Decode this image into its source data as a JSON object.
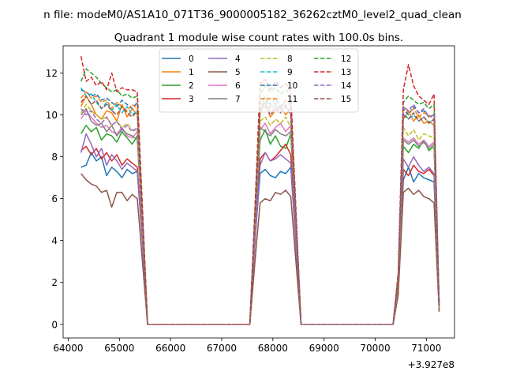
{
  "figure": {
    "suptitle": "n file: modeM0/AS1A10_071T36_9000005182_36262cztM0_level2_quad_clean",
    "title": "Quadrant 1 module wise count rates with 100.0s bins.",
    "offset_label": "+3.927e8"
  },
  "chart_data": {
    "type": "line",
    "title": "Quadrant 1 module wise count rates with 100.0s bins.",
    "xlabel": "",
    "ylabel": "",
    "x_offset": 392700000,
    "xlim": [
      63900,
      71550
    ],
    "ylim": [
      -0.65,
      13.3
    ],
    "xticks": [
      64000,
      65000,
      66000,
      67000,
      68000,
      69000,
      70000,
      71000
    ],
    "xtick_labels": [
      "64000",
      "65000",
      "66000",
      "67000",
      "68000",
      "69000",
      "70000",
      "71000"
    ],
    "yticks": [
      0,
      2,
      4,
      6,
      8,
      10,
      12
    ],
    "ytick_labels": [
      "0",
      "2",
      "4",
      "6",
      "8",
      "10",
      "12"
    ],
    "grid": false,
    "legend": {
      "placement": "upper-center",
      "columns": 4
    },
    "x": [
      64250,
      64350,
      64450,
      64550,
      64650,
      64750,
      64850,
      64950,
      65050,
      65150,
      65250,
      65350,
      65450,
      65550,
      65650,
      65750,
      65850,
      65950,
      66050,
      66150,
      66250,
      66350,
      66450,
      66550,
      66650,
      66750,
      66850,
      66950,
      67050,
      67150,
      67250,
      67350,
      67450,
      67550,
      67650,
      67750,
      67850,
      67950,
      68050,
      68150,
      68250,
      68350,
      68450,
      68550,
      68650,
      68750,
      68850,
      68950,
      69050,
      69150,
      69250,
      69350,
      69450,
      69550,
      69650,
      69750,
      69850,
      69950,
      70050,
      70150,
      70250,
      70350,
      70450,
      70550,
      70650,
      70750,
      70850,
      70950,
      71050,
      71150,
      71250
    ],
    "series": [
      {
        "name": "0",
        "color": "#1f77b4",
        "dash": "solid",
        "values": [
          7.5,
          7.6,
          8.2,
          7.8,
          8.0,
          7.1,
          7.5,
          7.3,
          7.0,
          7.4,
          7.2,
          7.3,
          4.0,
          0,
          0,
          0,
          0,
          0,
          0,
          0,
          0,
          0,
          0,
          0,
          0,
          0,
          0,
          0,
          0,
          0,
          0,
          0,
          0,
          0,
          4.0,
          7.2,
          7.4,
          7.1,
          7.0,
          7.3,
          7.2,
          7.5,
          3.8,
          0,
          0,
          0,
          0,
          0,
          0,
          0,
          0,
          0,
          0,
          0,
          0,
          0,
          0,
          0,
          0,
          0,
          0,
          0,
          1.6,
          6.9,
          7.5,
          6.8,
          7.2,
          7.0,
          6.9,
          6.8,
          0.8
        ]
      },
      {
        "name": "1",
        "color": "#ff7f0e",
        "dash": "solid",
        "values": [
          10.4,
          10.9,
          10.5,
          10.0,
          9.8,
          10.2,
          10.1,
          9.7,
          10.5,
          9.9,
          10.3,
          10.0,
          5.0,
          0,
          0,
          0,
          0,
          0,
          0,
          0,
          0,
          0,
          0,
          0,
          0,
          0,
          0,
          0,
          0,
          0,
          0,
          0,
          0,
          0,
          4.9,
          10.1,
          10.6,
          9.9,
          10.2,
          10.4,
          10.0,
          10.3,
          5.0,
          0,
          0,
          0,
          0,
          0,
          0,
          0,
          0,
          0,
          0,
          0,
          0,
          0,
          0,
          0,
          0,
          0,
          0,
          0,
          2.2,
          9.8,
          10.2,
          9.7,
          10.0,
          9.6,
          9.7,
          9.5,
          0.9
        ]
      },
      {
        "name": "2",
        "color": "#2ca02c",
        "dash": "solid",
        "values": [
          9.1,
          9.5,
          9.2,
          9.4,
          8.8,
          9.1,
          9.0,
          8.7,
          9.2,
          8.9,
          8.6,
          9.0,
          4.6,
          0,
          0,
          0,
          0,
          0,
          0,
          0,
          0,
          0,
          0,
          0,
          0,
          0,
          0,
          0,
          0,
          0,
          0,
          0,
          0,
          0,
          4.4,
          8.8,
          9.3,
          8.6,
          9.0,
          8.5,
          8.4,
          9.1,
          4.4,
          0,
          0,
          0,
          0,
          0,
          0,
          0,
          0,
          0,
          0,
          0,
          0,
          0,
          0,
          0,
          0,
          0,
          0,
          0,
          2.0,
          8.5,
          8.2,
          8.6,
          8.4,
          8.8,
          8.3,
          8.5,
          0.8
        ]
      },
      {
        "name": "3",
        "color": "#d62728",
        "dash": "solid",
        "values": [
          8.3,
          8.5,
          8.1,
          8.4,
          7.9,
          8.2,
          7.8,
          8.1,
          7.6,
          7.9,
          7.7,
          7.5,
          3.9,
          0,
          0,
          0,
          0,
          0,
          0,
          0,
          0,
          0,
          0,
          0,
          0,
          0,
          0,
          0,
          0,
          0,
          0,
          0,
          0,
          0,
          3.9,
          7.9,
          8.2,
          7.8,
          8.0,
          8.3,
          8.6,
          8.1,
          4.0,
          0,
          0,
          0,
          0,
          0,
          0,
          0,
          0,
          0,
          0,
          0,
          0,
          0,
          0,
          0,
          0,
          0,
          0,
          0,
          1.7,
          7.4,
          7.1,
          7.6,
          7.3,
          7.2,
          7.4,
          7.1,
          0.7
        ]
      },
      {
        "name": "4",
        "color": "#9467bd",
        "dash": "solid",
        "values": [
          8.2,
          9.1,
          8.6,
          8.0,
          8.4,
          7.6,
          8.1,
          7.8,
          7.4,
          7.7,
          7.5,
          7.3,
          3.8,
          0,
          0,
          0,
          0,
          0,
          0,
          0,
          0,
          0,
          0,
          0,
          0,
          0,
          0,
          0,
          0,
          0,
          0,
          0,
          0,
          0,
          3.9,
          7.6,
          8.2,
          7.8,
          7.9,
          8.1,
          7.9,
          7.7,
          3.7,
          0,
          0,
          0,
          0,
          0,
          0,
          0,
          0,
          0,
          0,
          0,
          0,
          0,
          0,
          0,
          0,
          0,
          0,
          0,
          1.8,
          7.9,
          7.5,
          8.0,
          7.6,
          7.3,
          7.5,
          7.2,
          0.7
        ]
      },
      {
        "name": "5",
        "color": "#8c564b",
        "dash": "solid",
        "values": [
          7.2,
          6.9,
          6.7,
          6.6,
          6.3,
          6.4,
          5.6,
          6.3,
          6.3,
          5.9,
          6.2,
          6.0,
          3.0,
          0,
          0,
          0,
          0,
          0,
          0,
          0,
          0,
          0,
          0,
          0,
          0,
          0,
          0,
          0,
          0,
          0,
          0,
          0,
          0,
          0,
          3.0,
          5.8,
          6.0,
          5.9,
          6.3,
          6.2,
          6.4,
          6.1,
          3.0,
          0,
          0,
          0,
          0,
          0,
          0,
          0,
          0,
          0,
          0,
          0,
          0,
          0,
          0,
          0,
          0,
          0,
          0,
          0,
          1.4,
          6.3,
          6.5,
          6.2,
          6.4,
          6.1,
          6.0,
          5.8,
          0.6
        ]
      },
      {
        "name": "6",
        "color": "#e377c2",
        "dash": "solid",
        "values": [
          9.8,
          10.2,
          9.9,
          9.6,
          9.4,
          9.5,
          9.2,
          9.1,
          9.4,
          9.0,
          8.9,
          9.2,
          4.7,
          0,
          0,
          0,
          0,
          0,
          0,
          0,
          0,
          0,
          0,
          0,
          0,
          0,
          0,
          0,
          0,
          0,
          0,
          0,
          0,
          0,
          4.6,
          9.3,
          9.6,
          9.1,
          9.4,
          9.6,
          9.2,
          9.5,
          4.6,
          0,
          0,
          0,
          0,
          0,
          0,
          0,
          0,
          0,
          0,
          0,
          0,
          0,
          0,
          0,
          0,
          0,
          0,
          0,
          2.0,
          8.9,
          8.7,
          8.9,
          8.6,
          8.8,
          8.5,
          8.7,
          0.8
        ]
      },
      {
        "name": "7",
        "color": "#7f7f7f",
        "dash": "solid",
        "values": [
          10.0,
          10.3,
          9.7,
          9.5,
          9.6,
          9.2,
          9.5,
          9.0,
          9.3,
          9.1,
          9.0,
          8.8,
          4.6,
          0,
          0,
          0,
          0,
          0,
          0,
          0,
          0,
          0,
          0,
          0,
          0,
          0,
          0,
          0,
          0,
          0,
          0,
          0,
          0,
          0,
          4.6,
          9.4,
          9.2,
          9.0,
          9.3,
          9.1,
          9.0,
          9.2,
          4.6,
          0,
          0,
          0,
          0,
          0,
          0,
          0,
          0,
          0,
          0,
          0,
          0,
          0,
          0,
          0,
          0,
          0,
          0,
          0,
          2.0,
          8.8,
          8.6,
          8.8,
          8.5,
          8.7,
          8.4,
          8.6,
          0.8
        ]
      },
      {
        "name": "8",
        "color": "#bcbd22",
        "dash": "dashed",
        "values": [
          10.1,
          10.5,
          10.2,
          10.0,
          9.8,
          9.9,
          9.5,
          9.7,
          9.4,
          9.6,
          9.3,
          9.2,
          4.8,
          0,
          0,
          0,
          0,
          0,
          0,
          0,
          0,
          0,
          0,
          0,
          0,
          0,
          0,
          0,
          0,
          0,
          0,
          0,
          0,
          0,
          4.8,
          9.7,
          9.9,
          9.5,
          9.8,
          9.6,
          9.9,
          9.4,
          4.8,
          0,
          0,
          0,
          0,
          0,
          0,
          0,
          0,
          0,
          0,
          0,
          0,
          0,
          0,
          0,
          0,
          0,
          0,
          0,
          2.0,
          9.4,
          9.0,
          9.3,
          8.8,
          9.1,
          9.0,
          8.9,
          0.8
        ]
      },
      {
        "name": "9",
        "color": "#17becf",
        "dash": "dashed",
        "values": [
          11.3,
          10.9,
          11.0,
          10.6,
          10.3,
          10.6,
          10.2,
          10.5,
          10.1,
          10.4,
          10.0,
          10.2,
          5.2,
          0,
          0,
          0,
          0,
          0,
          0,
          0,
          0,
          0,
          0,
          0,
          0,
          0,
          0,
          0,
          0,
          0,
          0,
          0,
          0,
          0,
          5.1,
          10.4,
          10.7,
          10.3,
          10.5,
          10.1,
          10.4,
          10.2,
          5.1,
          0,
          0,
          0,
          0,
          0,
          0,
          0,
          0,
          0,
          0,
          0,
          0,
          0,
          0,
          0,
          0,
          0,
          0,
          0,
          2.3,
          10.1,
          9.8,
          10.0,
          9.7,
          9.9,
          9.6,
          9.8,
          0.9
        ]
      },
      {
        "name": "10",
        "color": "#1f77b4",
        "dash": "dashed",
        "values": [
          11.2,
          11.1,
          10.9,
          11.0,
          10.7,
          10.8,
          10.6,
          10.4,
          10.7,
          10.5,
          10.3,
          10.6,
          5.3,
          0,
          0,
          0,
          0,
          0,
          0,
          0,
          0,
          0,
          0,
          0,
          0,
          0,
          0,
          0,
          0,
          0,
          0,
          0,
          0,
          0,
          5.3,
          10.6,
          10.9,
          10.5,
          10.8,
          10.4,
          10.7,
          10.5,
          5.2,
          0,
          0,
          0,
          0,
          0,
          0,
          0,
          0,
          0,
          0,
          0,
          0,
          0,
          0,
          0,
          0,
          0,
          0,
          0,
          2.3,
          10.3,
          10.0,
          10.4,
          10.1,
          10.2,
          9.9,
          10.0,
          0.9
        ]
      },
      {
        "name": "11",
        "color": "#ff7f0e",
        "dash": "dashed",
        "values": [
          10.8,
          11.1,
          10.8,
          10.9,
          10.6,
          10.7,
          10.3,
          10.6,
          10.4,
          10.2,
          10.5,
          10.3,
          5.2,
          0,
          0,
          0,
          0,
          0,
          0,
          0,
          0,
          0,
          0,
          0,
          0,
          0,
          0,
          0,
          0,
          0,
          0,
          0,
          0,
          0,
          5.2,
          10.5,
          10.8,
          10.4,
          10.6,
          10.3,
          10.7,
          10.4,
          5.1,
          0,
          0,
          0,
          0,
          0,
          0,
          0,
          0,
          0,
          0,
          0,
          0,
          0,
          0,
          0,
          0,
          0,
          0,
          0,
          2.2,
          10.4,
          10.1,
          10.3,
          9.9,
          10.1,
          10.0,
          9.8,
          0.9
        ]
      },
      {
        "name": "12",
        "color": "#2ca02c",
        "dash": "dashed",
        "values": [
          11.6,
          12.2,
          12.0,
          11.8,
          11.5,
          11.3,
          11.1,
          11.2,
          10.9,
          11.0,
          10.8,
          10.9,
          5.5,
          0,
          0,
          0,
          0,
          0,
          0,
          0,
          0,
          0,
          0,
          0,
          0,
          0,
          0,
          0,
          0,
          0,
          0,
          0,
          0,
          0,
          5.5,
          11.0,
          11.4,
          11.1,
          11.3,
          11.0,
          11.2,
          10.9,
          5.4,
          0,
          0,
          0,
          0,
          0,
          0,
          0,
          0,
          0,
          0,
          0,
          0,
          0,
          0,
          0,
          0,
          0,
          0,
          0,
          2.4,
          10.6,
          10.9,
          10.7,
          10.5,
          10.6,
          10.3,
          10.5,
          0.9
        ]
      },
      {
        "name": "13",
        "color": "#d62728",
        "dash": "dashed",
        "values": [
          12.8,
          11.6,
          11.8,
          11.4,
          11.6,
          11.2,
          12.0,
          11.1,
          11.3,
          11.2,
          11.2,
          11.1,
          5.6,
          0,
          0,
          0,
          0,
          0,
          0,
          0,
          0,
          0,
          0,
          0,
          0,
          0,
          0,
          0,
          0,
          0,
          0,
          0,
          0,
          0,
          5.6,
          11.5,
          11.7,
          11.2,
          11.6,
          11.3,
          11.5,
          11.1,
          5.5,
          0,
          0,
          0,
          0,
          0,
          0,
          0,
          0,
          0,
          0,
          0,
          0,
          0,
          0,
          0,
          0,
          0,
          0,
          0,
          2.5,
          11.2,
          12.4,
          11.4,
          10.9,
          10.7,
          10.5,
          11.0,
          0.9
        ]
      },
      {
        "name": "14",
        "color": "#9467bd",
        "dash": "dashed",
        "values": [
          10.3,
          10.0,
          10.2,
          9.8,
          9.6,
          9.9,
          9.5,
          9.7,
          9.3,
          9.5,
          9.2,
          9.4,
          4.8,
          0,
          0,
          0,
          0,
          0,
          0,
          0,
          0,
          0,
          0,
          0,
          0,
          0,
          0,
          0,
          0,
          0,
          0,
          0,
          0,
          0,
          4.8,
          10.3,
          10.6,
          10.1,
          10.4,
          10.2,
          10.5,
          10.0,
          5.0,
          0,
          0,
          0,
          0,
          0,
          0,
          0,
          0,
          0,
          0,
          0,
          0,
          0,
          0,
          0,
          0,
          0,
          0,
          0,
          2.2,
          10.4,
          10.2,
          10.5,
          10.1,
          10.3,
          9.9,
          10.0,
          0.9
        ]
      },
      {
        "name": "15",
        "color": "#8c564b",
        "dash": "dashed",
        "values": [
          10.6,
          10.9,
          10.5,
          10.7,
          10.3,
          10.5,
          10.2,
          10.0,
          10.4,
          10.1,
          9.9,
          10.2,
          5.1,
          0,
          0,
          0,
          0,
          0,
          0,
          0,
          0,
          0,
          0,
          0,
          0,
          0,
          0,
          0,
          0,
          0,
          0,
          0,
          0,
          0,
          5.1,
          10.2,
          10.4,
          10.0,
          10.3,
          10.1,
          10.4,
          10.0,
          5.0,
          0,
          0,
          0,
          0,
          0,
          0,
          0,
          0,
          0,
          0,
          0,
          0,
          0,
          0,
          0,
          0,
          0,
          0,
          0,
          2.2,
          10.0,
          9.8,
          10.1,
          9.7,
          9.9,
          9.6,
          9.8,
          0.9
        ]
      }
    ]
  }
}
